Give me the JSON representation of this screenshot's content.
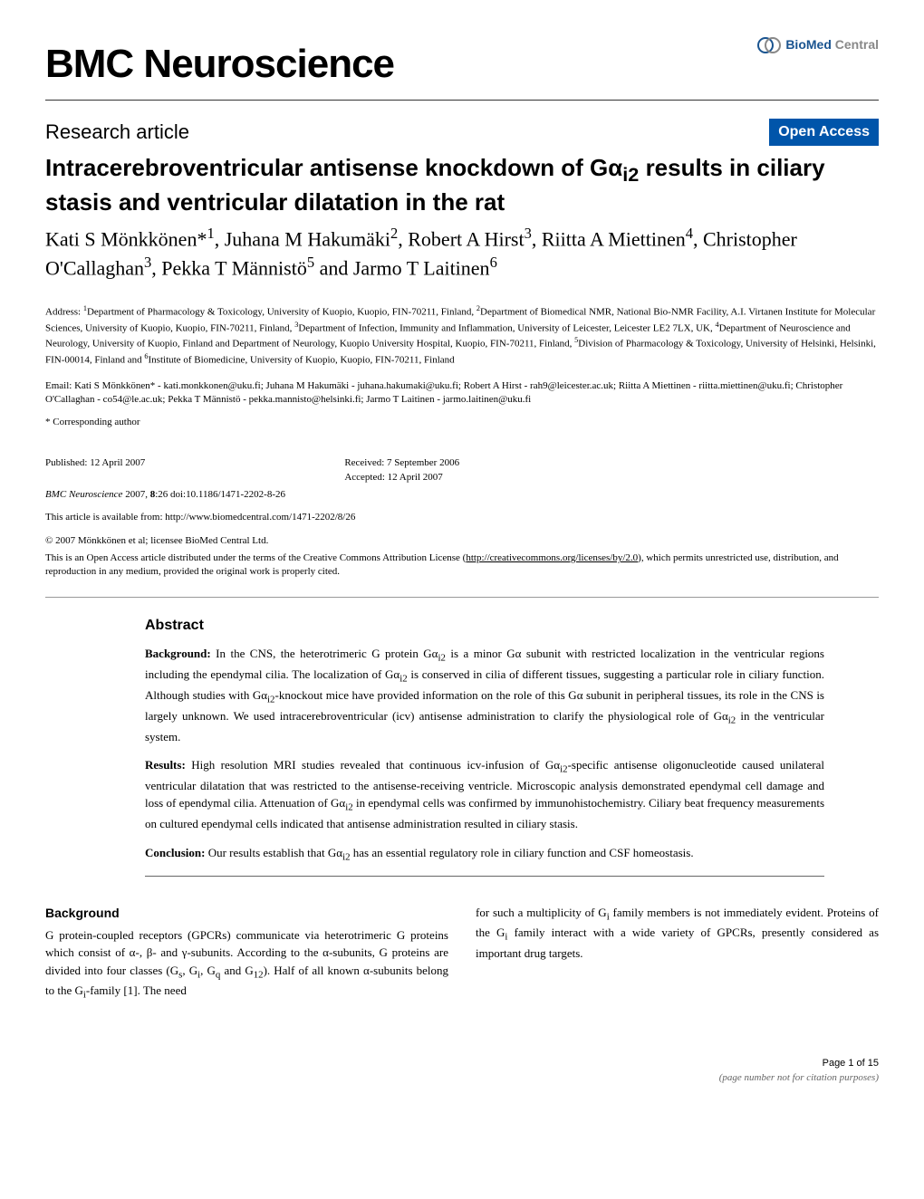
{
  "journal_name": "BMC Neuroscience",
  "publisher": {
    "bio": "BioMed",
    "central": " Central"
  },
  "article_type": "Research article",
  "open_access": "Open Access",
  "title_html": "Intracerebroventricular antisense knockdown of Gα<sub>i2</sub> results in ciliary stasis and ventricular dilatation in the rat",
  "authors_html": "Kati S Mönkkönen*<sup>1</sup>, Juhana M Hakumäki<sup>2</sup>, Robert A Hirst<sup>3</sup>, Riitta A Miettinen<sup>4</sup>, Christopher O'Callaghan<sup>3</sup>, Pekka T Männistö<sup>5</sup> and Jarmo T Laitinen<sup>6</sup>",
  "affiliations_html": "Address: <sup>1</sup>Department of Pharmacology & Toxicology, University of Kuopio, Kuopio, FIN-70211, Finland, <sup>2</sup>Department of Biomedical NMR, National Bio-NMR Facility, A.I. Virtanen Institute for Molecular Sciences, University of Kuopio, Kuopio, FIN-70211, Finland, <sup>3</sup>Department of Infection, Immunity and Inflammation, University of Leicester, Leicester LE2 7LX, UK, <sup>4</sup>Department of Neuroscience and Neurology, University of Kuopio, Finland and Department of Neurology, Kuopio University Hospital, Kuopio, FIN-70211, Finland, <sup>5</sup>Division of Pharmacology & Toxicology, University of Helsinki, Helsinki, FIN-00014, Finland and <sup>6</sup>Institute of Biomedicine, University of Kuopio, Kuopio, FIN-70211, Finland",
  "emails": "Email: Kati S Mönkkönen* - kati.monkkonen@uku.fi; Juhana M Hakumäki - juhana.hakumaki@uku.fi; Robert A Hirst - rah9@leicester.ac.uk; Riitta A Miettinen - riitta.miettinen@uku.fi; Christopher O'Callaghan - co54@le.ac.uk; Pekka T Männistö - pekka.mannisto@helsinki.fi; Jarmo T Laitinen - jarmo.laitinen@uku.fi",
  "corresponding": "* Corresponding author",
  "published": "Published: 12 April 2007",
  "received": "Received: 7 September 2006",
  "accepted": "Accepted: 12 April 2007",
  "citation_journal": "BMC Neuroscience",
  "citation_year_vol": " 2007, ",
  "citation_bold": "8",
  "citation_rest": ":26    doi:10.1186/1471-2202-8-26",
  "article_link_label": "This article is available from: ",
  "article_link_url": "http://www.biomedcentral.com/1471-2202/8/26",
  "copyright": "© 2007 Mönkkönen et al; licensee BioMed Central Ltd.",
  "license_html": "This is an Open Access article distributed under the terms of the Creative Commons Attribution License (<span class=\"underline\">http://creativecommons.org/licenses/by/2.0</span>), which permits unrestricted use, distribution, and reproduction in any medium, provided the original work is properly cited.",
  "abstract_heading": "Abstract",
  "abstract_background_label": "Background:",
  "abstract_background_html": " In the CNS, the heterotrimeric G protein Gα<sub>i2</sub> is a minor Gα subunit with restricted localization in the ventricular regions including the ependymal cilia. The localization of Gα<sub>i2</sub> is conserved in cilia of different tissues, suggesting a particular role in ciliary function. Although studies with Gα<sub>i2</sub>-knockout mice have provided information on the role of this Gα subunit in peripheral tissues, its role in the CNS is largely unknown. We used intracerebroventricular (icv) antisense administration to clarify the physiological role of Gα<sub>i2</sub> in the ventricular system.",
  "abstract_results_label": "Results:",
  "abstract_results_html": " High resolution MRI studies revealed that continuous icv-infusion of Gα<sub>i2</sub>-specific antisense oligonucleotide caused unilateral ventricular dilatation that was restricted to the antisense-receiving ventricle. Microscopic analysis demonstrated ependymal cell damage and loss of ependymal cilia. Attenuation of Gα<sub>i2</sub> in ependymal cells was confirmed by immunohistochemistry. Ciliary beat frequency measurements on cultured ependymal cells indicated that antisense administration resulted in ciliary stasis.",
  "abstract_conclusion_label": "Conclusion:",
  "abstract_conclusion_html": " Our results establish that Gα<sub>i2</sub> has an essential regulatory role in ciliary function and CSF homeostasis.",
  "background_heading": "Background",
  "background_col1_html": "G protein-coupled receptors (GPCRs) communicate via heterotrimeric G proteins which consist of α-, β- and γ-subunits. According to the α-subunits, G proteins are divided into four classes (G<sub>s</sub>, G<sub>i</sub>, G<sub>q</sub> and G<sub>12</sub>). Half of all known α-subunits belong to the G<sub>i</sub>-family [1]. The need",
  "background_col2_html": "for such a multiplicity of G<sub>i</sub> family members is not immediately evident. Proteins of the G<sub>i</sub> family interact with a wide variety of GPCRs, presently considered as important drug targets.",
  "footer_page": "Page 1 of 15",
  "footer_note": "(page number not for citation purposes)",
  "colors": {
    "open_access_bg": "#0055aa",
    "open_access_fg": "#ffffff",
    "biomed_bio": "#1a5490",
    "biomed_gray": "#888888",
    "text": "#000000",
    "bg": "#ffffff"
  }
}
